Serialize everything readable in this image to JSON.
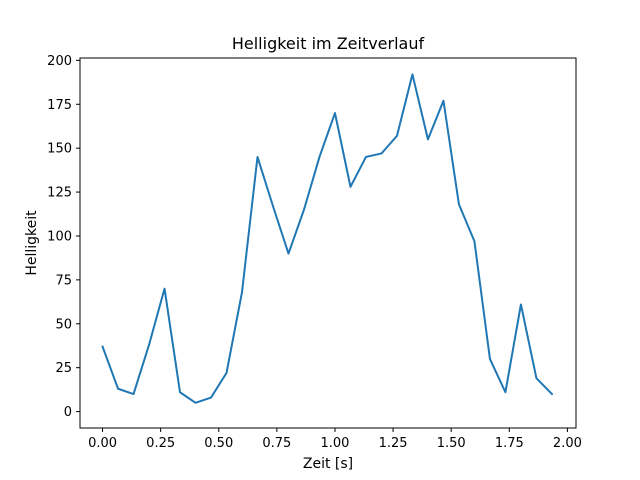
{
  "chart_data": {
    "type": "line",
    "title": "Helligkeit im Zeitverlauf",
    "xlabel": "Zeit [s]",
    "ylabel": "Helligkeit",
    "xlim": [
      -0.097,
      2.037
    ],
    "ylim": [
      -9.35,
      201.35
    ],
    "xticks": [
      0.0,
      0.25,
      0.5,
      0.75,
      1.0,
      1.25,
      1.5,
      1.75,
      2.0
    ],
    "xtick_labels": [
      "0.00",
      "0.25",
      "0.50",
      "0.75",
      "1.00",
      "1.25",
      "1.50",
      "1.75",
      "2.00"
    ],
    "yticks": [
      0,
      25,
      50,
      75,
      100,
      125,
      150,
      175,
      200
    ],
    "ytick_labels": [
      "0",
      "25",
      "50",
      "75",
      "100",
      "125",
      "150",
      "175",
      "200"
    ],
    "grid": false,
    "series": [
      {
        "color": "#1f77b4",
        "x": [
          0.0,
          0.0667,
          0.1333,
          0.2,
          0.2667,
          0.3333,
          0.4,
          0.4667,
          0.5333,
          0.6,
          0.6667,
          0.7333,
          0.8,
          0.8667,
          0.9333,
          1.0,
          1.0667,
          1.1333,
          1.2,
          1.2667,
          1.3333,
          1.4,
          1.4667,
          1.5333,
          1.6,
          1.6667,
          1.7333,
          1.8,
          1.8667,
          1.9333
        ],
        "y": [
          37,
          13,
          10,
          38,
          70,
          11,
          5,
          8,
          22,
          68,
          145,
          117,
          90,
          115,
          145,
          170,
          128,
          145,
          147,
          157,
          192,
          155,
          177,
          118,
          97,
          30,
          11,
          61,
          19,
          10
        ]
      }
    ]
  }
}
